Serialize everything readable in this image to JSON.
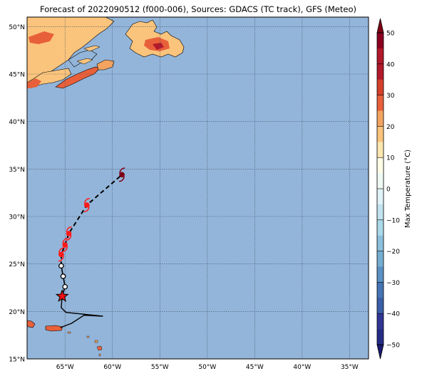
{
  "title": "Forecast of 2022090512 (f000-006), Sources: GDACS (TC track), GFS (Meteo)",
  "map": {
    "lon_range": [
      -69,
      -33
    ],
    "lat_range": [
      15,
      51
    ],
    "lat_ticks": [
      {
        "lat": 50,
        "label": "50°N"
      },
      {
        "lat": 45,
        "label": "45°N"
      },
      {
        "lat": 40,
        "label": "40°N"
      },
      {
        "lat": 35,
        "label": "35°N"
      },
      {
        "lat": 30,
        "label": "30°N"
      },
      {
        "lat": 25,
        "label": "25°N"
      },
      {
        "lat": 20,
        "label": "20°N"
      },
      {
        "lat": 15,
        "label": "15°N"
      }
    ],
    "lon_ticks": [
      {
        "lon": -65,
        "label": "65°W"
      },
      {
        "lon": -60,
        "label": "60°W"
      },
      {
        "lon": -55,
        "label": "55°W"
      },
      {
        "lon": -50,
        "label": "50°W"
      },
      {
        "lon": -45,
        "label": "45°W"
      },
      {
        "lon": -40,
        "label": "40°W"
      },
      {
        "lon": -35,
        "label": "35°W"
      }
    ],
    "colors": {
      "ocean": "#93b5d9",
      "grid": "#44546a"
    }
  },
  "track": {
    "past": [
      [
        -65.5,
        18.3
      ],
      [
        -64.3,
        18.75
      ],
      [
        -63.0,
        19.6
      ],
      [
        -61.0,
        19.5
      ],
      [
        -64.9,
        19.9
      ],
      [
        -65.4,
        20.4
      ],
      [
        -65.3,
        21.6
      ]
    ],
    "observed_positions": [
      [
        -65.3,
        21.6
      ],
      [
        -65.0,
        22.6
      ],
      [
        -65.2,
        23.7
      ],
      [
        -65.4,
        24.8
      ]
    ],
    "forecast": [
      [
        -65.4,
        24.8
      ],
      [
        -65.4,
        26.0
      ],
      [
        -65.0,
        27.0
      ],
      [
        -64.6,
        28.2
      ],
      [
        -62.7,
        31.2
      ],
      [
        -59.0,
        34.4
      ]
    ],
    "forecast_symbols": [
      {
        "lon": -65.4,
        "lat": 26.0,
        "color": "#ff1a1a"
      },
      {
        "lon": -65.0,
        "lat": 27.0,
        "color": "#ff1a1a"
      },
      {
        "lon": -64.6,
        "lat": 28.2,
        "color": "#ff1a1a"
      },
      {
        "lon": -62.7,
        "lat": 31.2,
        "color": "#ff1a1a"
      },
      {
        "lon": -59.0,
        "lat": 34.4,
        "color": "#7f0014"
      }
    ],
    "current_position": {
      "lon": -65.3,
      "lat": 21.6,
      "color": "#ee1111"
    }
  },
  "colorbar": {
    "label": "Max Temperature (°C)",
    "ticks": [
      "50",
      "40",
      "30",
      "20",
      "10",
      "0",
      "−10",
      "−20",
      "−30",
      "−40",
      "−50"
    ],
    "levels": [
      {
        "value": 50,
        "color": "#8b0020"
      },
      {
        "value": 45,
        "color": "#b2182b"
      },
      {
        "value": 40,
        "color": "#b2182b"
      },
      {
        "value": 35,
        "color": "#d6402a"
      },
      {
        "value": 30,
        "color": "#e8603a"
      },
      {
        "value": 25,
        "color": "#f4a460"
      },
      {
        "value": 20,
        "color": "#fbc47c"
      },
      {
        "value": 15,
        "color": "#fde7b0"
      },
      {
        "value": 10,
        "color": "#fffde6"
      },
      {
        "value": 5,
        "color": "#f0faf5"
      },
      {
        "value": 0,
        "color": "#e0f3f8"
      },
      {
        "value": -5,
        "color": "#c2e2ef"
      },
      {
        "value": -10,
        "color": "#abd9e9"
      },
      {
        "value": -15,
        "color": "#8cc0dc"
      },
      {
        "value": -20,
        "color": "#74add1"
      },
      {
        "value": -25,
        "color": "#5b91c4"
      },
      {
        "value": -30,
        "color": "#4575b4"
      },
      {
        "value": -35,
        "color": "#3b5ea8"
      },
      {
        "value": -40,
        "color": "#313695"
      },
      {
        "value": -45,
        "color": "#262c85"
      }
    ],
    "extend_colors": {
      "top": "#7f0014",
      "bottom": "#1a1a70"
    }
  }
}
